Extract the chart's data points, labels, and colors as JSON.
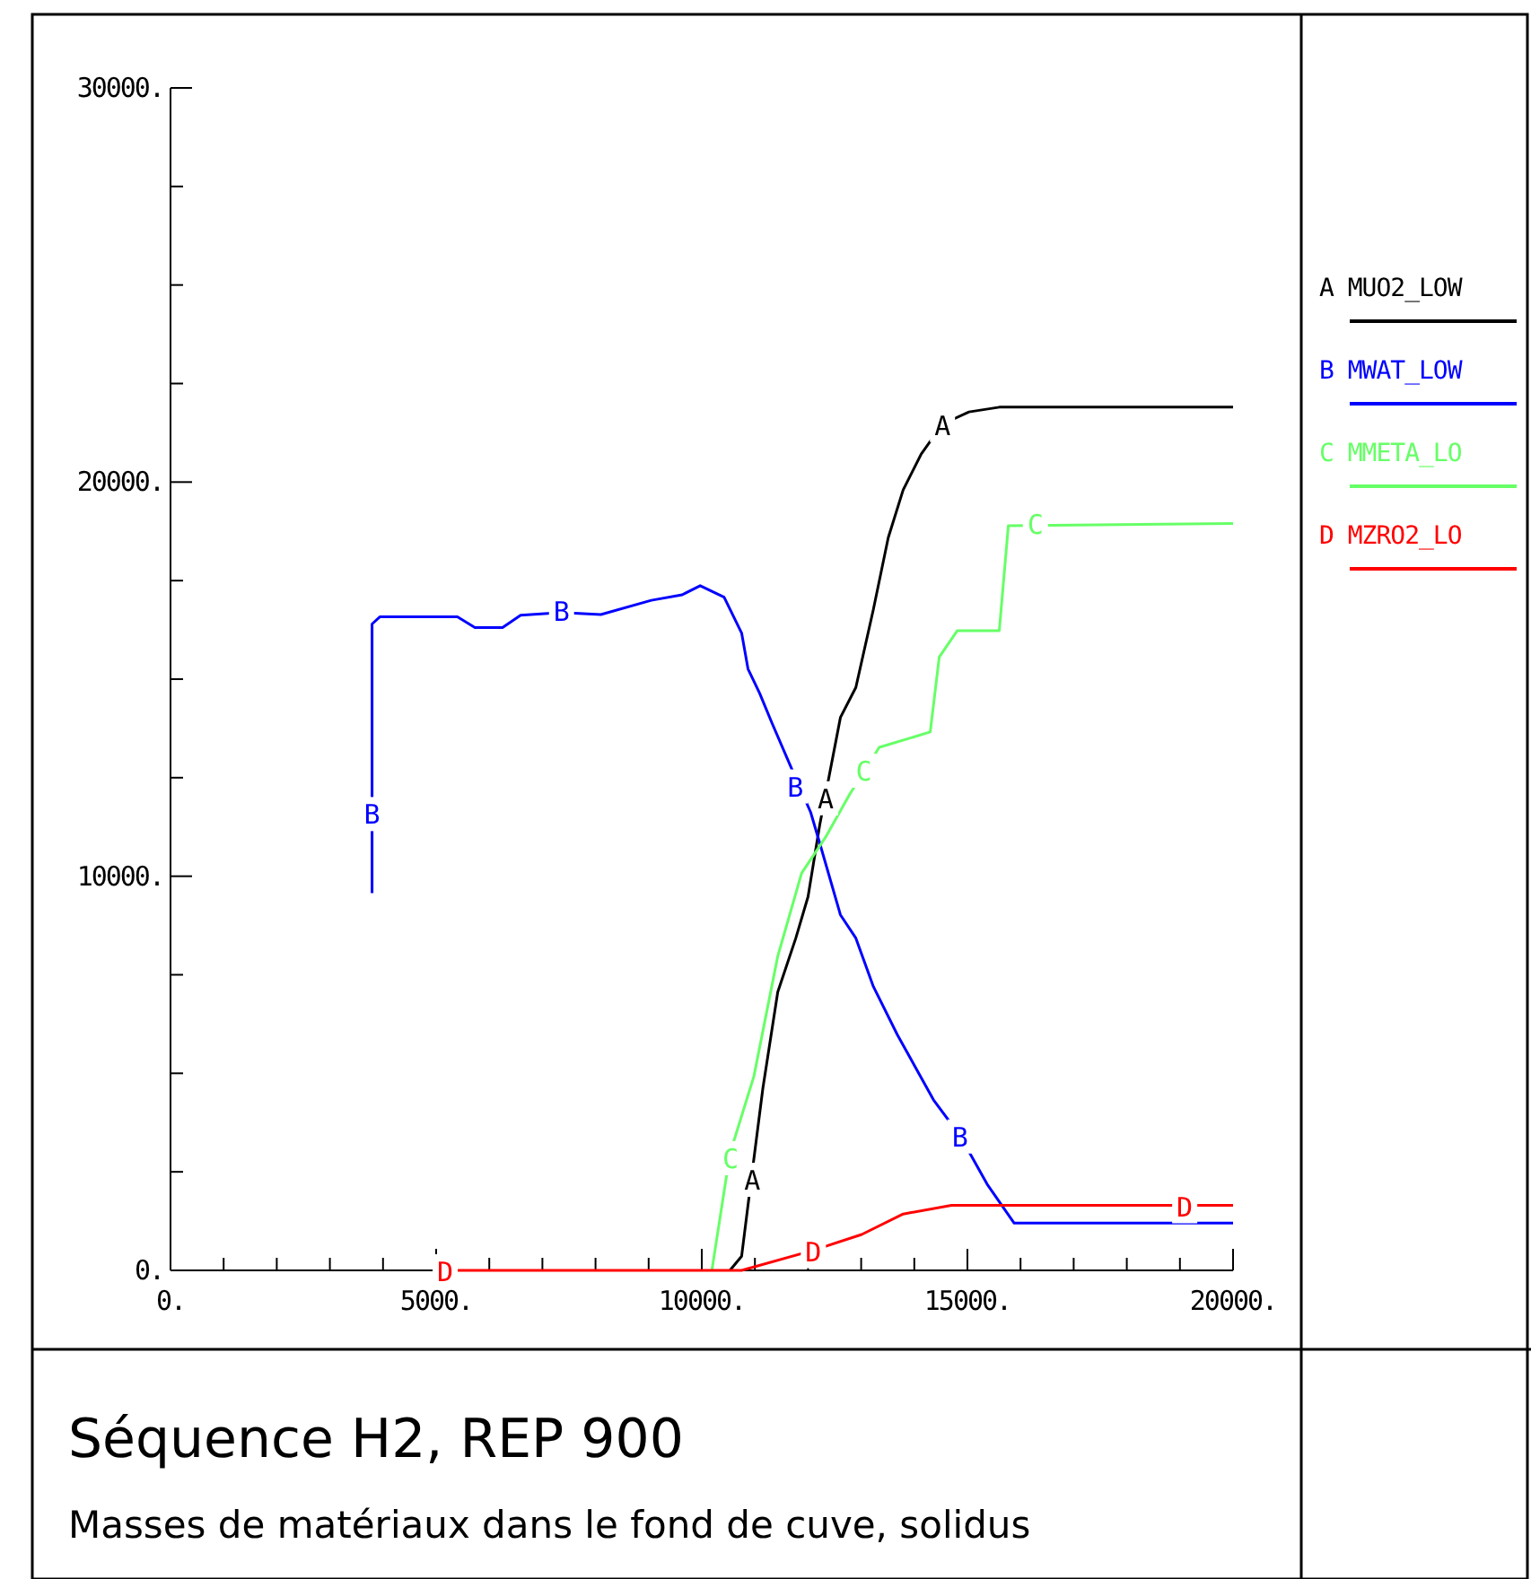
{
  "chart_data": {
    "type": "line",
    "title": "Séquence H2, REP 900",
    "subtitle": "Masses de matériaux dans le fond de cuve, solidus",
    "xlim": [
      0,
      20000
    ],
    "ylim": [
      0,
      30000
    ],
    "xticks": [
      {
        "value": 0,
        "label": "0."
      },
      {
        "value": 1000,
        "label": null
      },
      {
        "value": 2000,
        "label": null
      },
      {
        "value": 3000,
        "label": null
      },
      {
        "value": 4000,
        "label": null
      },
      {
        "value": 5000,
        "label": "5000."
      },
      {
        "value": 6000,
        "label": null
      },
      {
        "value": 7000,
        "label": null
      },
      {
        "value": 8000,
        "label": null
      },
      {
        "value": 9000,
        "label": null
      },
      {
        "value": 10000,
        "label": "10000."
      },
      {
        "value": 11000,
        "label": null
      },
      {
        "value": 12000,
        "label": null
      },
      {
        "value": 13000,
        "label": null
      },
      {
        "value": 14000,
        "label": null
      },
      {
        "value": 15000,
        "label": "15000."
      },
      {
        "value": 16000,
        "label": null
      },
      {
        "value": 17000,
        "label": null
      },
      {
        "value": 18000,
        "label": null
      },
      {
        "value": 19000,
        "label": null
      },
      {
        "value": 20000,
        "label": "20000."
      }
    ],
    "yticks": [
      {
        "value": 0,
        "label": "0."
      },
      {
        "value": 2500,
        "label": null
      },
      {
        "value": 5000,
        "label": null
      },
      {
        "value": 7500,
        "label": null
      },
      {
        "value": 10000,
        "label": "10000."
      },
      {
        "value": 12500,
        "label": null
      },
      {
        "value": 15000,
        "label": null
      },
      {
        "value": 17500,
        "label": null
      },
      {
        "value": 20000,
        "label": "20000."
      },
      {
        "value": 22500,
        "label": null
      },
      {
        "value": 25000,
        "label": null
      },
      {
        "value": 27500,
        "label": null
      },
      {
        "value": 30000,
        "label": "30000."
      }
    ],
    "grid": false,
    "legend": "right",
    "marker": "none",
    "line_style": "solid",
    "series": [
      {
        "name": "A MUO2_LOW",
        "color": "#000000",
        "x": [
          10530,
          10750,
          10920,
          11150,
          11430,
          11770,
          12000,
          12220,
          12610,
          12900,
          13230,
          13510,
          13790,
          14130,
          14530,
          15030,
          15600,
          20000
        ],
        "values": [
          0,
          360,
          2190,
          4620,
          7060,
          8430,
          9480,
          11300,
          14030,
          14790,
          16770,
          18590,
          19800,
          20710,
          21470,
          21780,
          21900,
          21900
        ]
      },
      {
        "name": "B MWAT_LOW",
        "color": "#0000ff",
        "x": [
          3794,
          3794,
          3794,
          3940,
          5400,
          5730,
          6250,
          6590,
          7360,
          8100,
          9050,
          9630,
          9970,
          10420,
          10750,
          10870,
          11090,
          11320,
          11710,
          12050,
          12220,
          12610,
          12900,
          13230,
          13680,
          14360,
          14860,
          15370,
          15880,
          20000
        ],
        "values": [
          9570,
          14800,
          16400,
          16580,
          16580,
          16310,
          16310,
          16620,
          16690,
          16640,
          17000,
          17140,
          17370,
          17080,
          16170,
          15260,
          14640,
          13890,
          12670,
          11620,
          10840,
          9020,
          8430,
          7200,
          5980,
          4330,
          3420,
          2190,
          1200,
          1200
        ]
      },
      {
        "name": "C MMETA_LO",
        "color": "#66ff66",
        "x": [
          10190,
          10530,
          10980,
          11430,
          11880,
          12330,
          12780,
          13340,
          14300,
          14470,
          14810,
          15600,
          15770,
          20000
        ],
        "values": [
          0,
          2960,
          4920,
          7970,
          10080,
          10990,
          12070,
          13270,
          13660,
          15560,
          16230,
          16230,
          18890,
          18950
        ]
      },
      {
        "name": "D MZRO2_LO",
        "color": "#ff0000",
        "x": [
          5000,
          10750,
          12100,
          13010,
          13790,
          14700,
          20000
        ],
        "values": [
          0,
          0,
          510,
          910,
          1430,
          1650,
          1650
        ]
      }
    ],
    "annotations": [
      {
        "text": "A",
        "x": 10950,
        "y": 2320
      },
      {
        "text": "A",
        "x": 12330,
        "y": 12000
      },
      {
        "text": "A",
        "x": 14530,
        "y": 21470
      },
      {
        "text": "B",
        "x": 3794,
        "y": 11600
      },
      {
        "text": "B",
        "x": 7360,
        "y": 16750
      },
      {
        "text": "B",
        "x": 11760,
        "y": 12300
      },
      {
        "text": "B",
        "x": 14860,
        "y": 3420
      },
      {
        "text": "C",
        "x": 10540,
        "y": 2870
      },
      {
        "text": "C",
        "x": 13050,
        "y": 12700
      },
      {
        "text": "C",
        "x": 16280,
        "y": 18950
      },
      {
        "text": "D",
        "x": 5170,
        "y": 0
      },
      {
        "text": "D",
        "x": 12100,
        "y": 510
      },
      {
        "text": "D",
        "x": 19090,
        "y": 1650
      }
    ]
  }
}
